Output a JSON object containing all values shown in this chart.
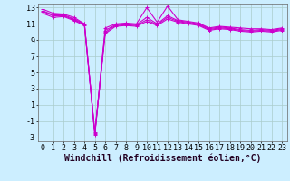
{
  "background_color": "#cceeff",
  "line_color": "#cc00cc",
  "grid_color": "#aacccc",
  "xlabel": "Windchill (Refroidissement éolien,°C)",
  "xlabel_fontsize": 7,
  "tick_fontsize": 6,
  "xlim": [
    -0.5,
    23.5
  ],
  "ylim": [
    -3.5,
    13.5
  ],
  "yticks": [
    -3,
    -1,
    1,
    3,
    5,
    7,
    9,
    11,
    13
  ],
  "xticks": [
    0,
    1,
    2,
    3,
    4,
    5,
    6,
    7,
    8,
    9,
    10,
    11,
    12,
    13,
    14,
    15,
    16,
    17,
    18,
    19,
    20,
    21,
    22,
    23
  ],
  "lines": [
    {
      "x": [
        0,
        1,
        2,
        3,
        4,
        5,
        6,
        7,
        8,
        9,
        10,
        11,
        12,
        13,
        14,
        15,
        16,
        17,
        18,
        19,
        20,
        21,
        22,
        23
      ],
      "y": [
        12.8,
        12.3,
        12.2,
        11.8,
        11.0,
        -2.5,
        10.5,
        11.0,
        11.1,
        11.0,
        13.0,
        11.2,
        13.2,
        11.5,
        11.3,
        11.1,
        10.5,
        10.7,
        10.6,
        10.5,
        10.4,
        10.4,
        10.3,
        10.5
      ]
    },
    {
      "x": [
        0,
        1,
        2,
        3,
        4,
        5,
        6,
        7,
        8,
        9,
        10,
        11,
        12,
        13,
        14,
        15,
        16,
        17,
        18,
        19,
        20,
        21,
        22,
        23
      ],
      "y": [
        12.6,
        12.1,
        12.1,
        11.6,
        11.0,
        -2.7,
        10.2,
        10.9,
        11.0,
        10.9,
        11.8,
        11.0,
        12.0,
        11.4,
        11.2,
        11.0,
        10.4,
        10.6,
        10.5,
        10.3,
        10.2,
        10.3,
        10.2,
        10.4
      ]
    },
    {
      "x": [
        0,
        1,
        2,
        3,
        4,
        5,
        6,
        7,
        8,
        9,
        10,
        11,
        12,
        13,
        14,
        15,
        16,
        17,
        18,
        19,
        20,
        21,
        22,
        23
      ],
      "y": [
        12.5,
        12.0,
        12.0,
        11.5,
        10.9,
        -2.6,
        10.0,
        10.8,
        10.9,
        10.8,
        11.5,
        10.9,
        11.8,
        11.3,
        11.1,
        10.9,
        10.3,
        10.5,
        10.4,
        10.2,
        10.1,
        10.2,
        10.1,
        10.3
      ]
    },
    {
      "x": [
        0,
        1,
        2,
        3,
        4,
        5,
        6,
        7,
        8,
        9,
        10,
        11,
        12,
        13,
        14,
        15,
        16,
        17,
        18,
        19,
        20,
        21,
        22,
        23
      ],
      "y": [
        12.3,
        11.8,
        11.9,
        11.4,
        10.8,
        -2.4,
        9.8,
        10.7,
        10.8,
        10.7,
        11.3,
        10.8,
        11.6,
        11.2,
        11.0,
        10.8,
        10.2,
        10.4,
        10.3,
        10.1,
        10.0,
        10.1,
        10.0,
        10.2
      ]
    }
  ]
}
